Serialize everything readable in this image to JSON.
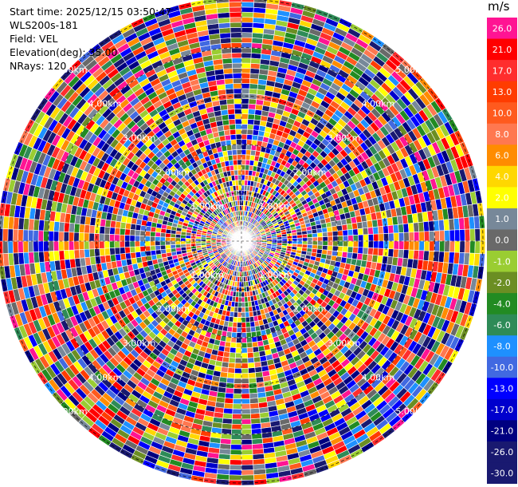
{
  "info": {
    "start_time": "Start time: 2025/12/15 03:50:47",
    "station": "WLS200s-181",
    "field": "Field: VEL",
    "elevation": "Elevation(deg): 35.00",
    "nrays": "NRays: 120"
  },
  "colorbar": {
    "unit": "m/s",
    "bins": [
      {
        "label": "26.0",
        "color": "#ff1493"
      },
      {
        "label": "21.0",
        "color": "#ff0000"
      },
      {
        "label": "17.0",
        "color": "#ff2d2d"
      },
      {
        "label": "13.0",
        "color": "#ff3c00"
      },
      {
        "label": "10.0",
        "color": "#ff5a1e"
      },
      {
        "label": "8.0",
        "color": "#ff7850"
      },
      {
        "label": "6.0",
        "color": "#ff8c00"
      },
      {
        "label": "4.0",
        "color": "#ffd700"
      },
      {
        "label": "2.0",
        "color": "#ffff00"
      },
      {
        "label": "1.0",
        "color": "#778899"
      },
      {
        "label": "0.0",
        "color": "#696969"
      },
      {
        "label": "-1.0",
        "color": "#9acd32"
      },
      {
        "label": "-2.0",
        "color": "#6b8e23"
      },
      {
        "label": "-4.0",
        "color": "#228b22"
      },
      {
        "label": "-6.0",
        "color": "#2e8b57"
      },
      {
        "label": "-8.0",
        "color": "#1e90ff"
      },
      {
        "label": "-10.0",
        "color": "#4169e1"
      },
      {
        "label": "-13.0",
        "color": "#0000ff"
      },
      {
        "label": "-17.0",
        "color": "#0000cd"
      },
      {
        "label": "-21.0",
        "color": "#000080"
      },
      {
        "label": "-26.0",
        "color": "#191970"
      },
      {
        "label": "-30.0",
        "color": "#191970"
      }
    ]
  },
  "chart_data": {
    "type": "heatmap",
    "projection": "polar-ppi",
    "field": "VEL",
    "units": "m/s",
    "nrays": 120,
    "range_rings": [
      {
        "label": "1.00km"
      },
      {
        "label": "2.00km"
      },
      {
        "label": "3.00km"
      },
      {
        "label": "4.00km"
      },
      {
        "label": "5.00km"
      }
    ],
    "cells": "noise-dominated radial velocity field; color bins cycle through the full colorbar"
  }
}
